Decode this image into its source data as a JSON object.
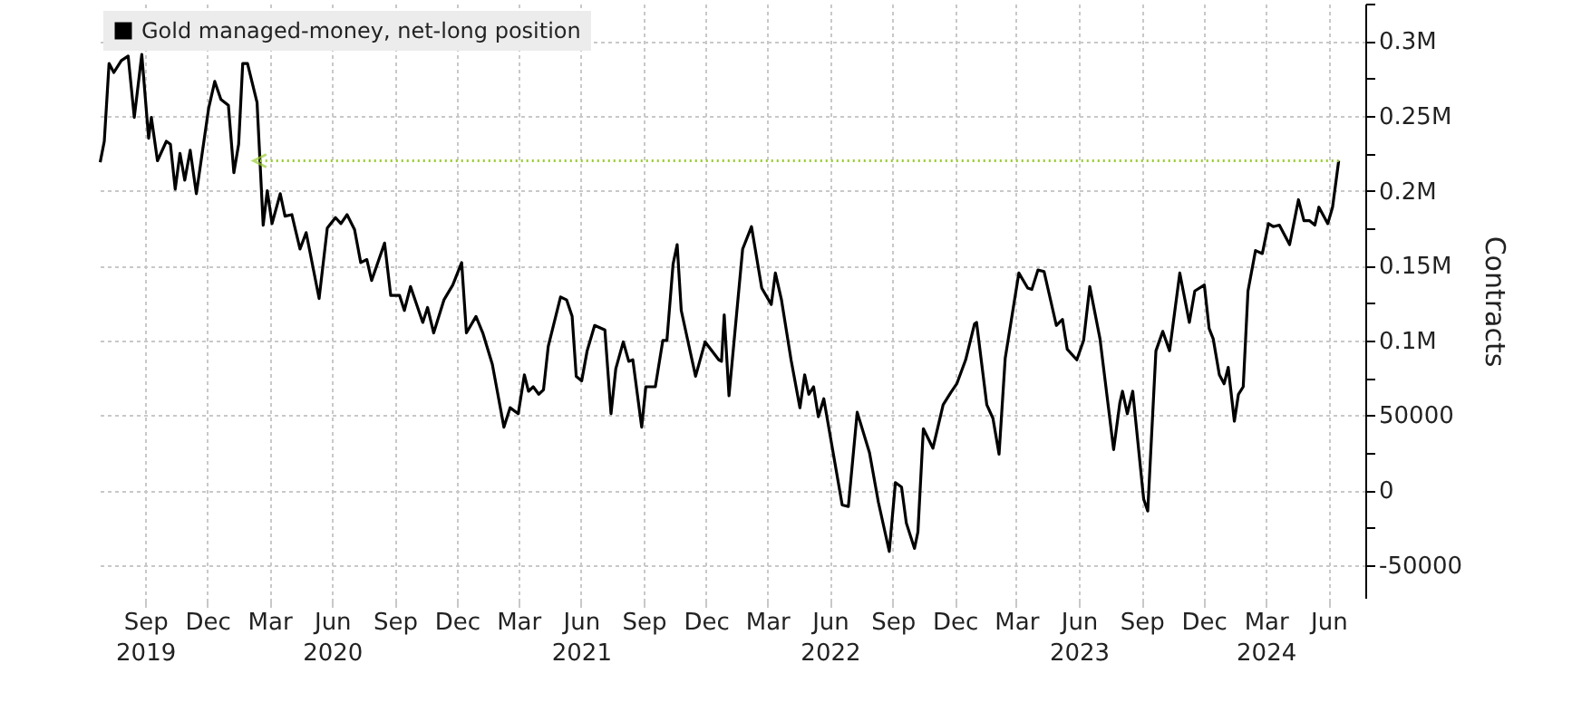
{
  "chart_data": {
    "type": "line",
    "x": [
      "2019-06-27",
      "2019-07-03",
      "2019-07-10",
      "2019-07-17",
      "2019-07-28",
      "2019-08-07",
      "2019-08-16",
      "2019-08-27",
      "2019-09-06",
      "2019-09-10",
      "2019-09-19",
      "2019-10-02",
      "2019-10-08",
      "2019-10-15",
      "2019-10-22",
      "2019-10-29",
      "2019-11-06",
      "2019-11-15",
      "2019-12-03",
      "2019-12-12",
      "2019-12-21",
      "2020-01-01",
      "2020-01-09",
      "2020-01-16",
      "2020-01-22",
      "2020-01-29",
      "2020-02-12",
      "2020-02-21",
      "2020-02-27",
      "2020-03-05",
      "2020-03-17",
      "2020-03-24",
      "2020-04-03",
      "2020-04-15",
      "2020-04-24",
      "2020-05-13",
      "2020-05-25",
      "2020-06-06",
      "2020-06-14",
      "2020-06-23",
      "2020-07-04",
      "2020-07-13",
      "2020-07-22",
      "2020-07-29",
      "2020-08-17",
      "2020-08-26",
      "2020-09-08",
      "2020-09-15",
      "2020-09-24",
      "2020-10-12",
      "2020-10-19",
      "2020-10-28",
      "2020-11-12",
      "2020-11-25",
      "2020-12-08",
      "2020-12-15",
      "2020-12-29",
      "2021-01-08",
      "2021-01-22",
      "2021-02-08",
      "2021-02-17",
      "2021-03-01",
      "2021-03-10",
      "2021-03-16",
      "2021-03-23",
      "2021-03-31",
      "2021-04-07",
      "2021-04-14",
      "2021-05-02",
      "2021-05-11",
      "2021-05-19",
      "2021-05-25",
      "2021-06-02",
      "2021-06-10",
      "2021-06-21",
      "2021-07-06",
      "2021-07-15",
      "2021-07-22",
      "2021-08-02",
      "2021-08-10",
      "2021-08-16",
      "2021-08-29",
      "2021-09-04",
      "2021-09-18",
      "2021-09-29",
      "2021-10-05",
      "2021-10-14",
      "2021-10-20",
      "2021-10-26",
      "2021-11-16",
      "2021-11-30",
      "2021-12-20",
      "2021-12-24",
      "2021-12-28",
      "2022-01-04",
      "2022-01-24",
      "2022-02-06",
      "2022-02-21",
      "2022-03-07",
      "2022-03-13",
      "2022-03-22",
      "2022-04-05",
      "2022-04-18",
      "2022-04-25",
      "2022-05-01",
      "2022-05-08",
      "2022-05-15",
      "2022-05-23",
      "2022-06-19",
      "2022-06-28",
      "2022-07-11",
      "2022-07-29",
      "2022-08-11",
      "2022-08-27",
      "2022-09-05",
      "2022-09-14",
      "2022-09-21",
      "2022-10-03",
      "2022-10-08",
      "2022-10-16",
      "2022-10-30",
      "2022-11-14",
      "2022-11-25",
      "2022-12-04",
      "2022-12-17",
      "2022-12-30",
      "2023-01-02",
      "2023-01-17",
      "2023-01-26",
      "2023-02-04",
      "2023-02-13",
      "2023-03-05",
      "2023-03-18",
      "2023-03-24",
      "2023-04-02",
      "2023-04-11",
      "2023-04-29",
      "2023-05-08",
      "2023-05-15",
      "2023-05-29",
      "2023-06-08",
      "2023-06-17",
      "2023-07-02",
      "2023-07-22",
      "2023-07-31",
      "2023-08-04",
      "2023-08-11",
      "2023-08-19",
      "2023-09-04",
      "2023-09-10",
      "2023-09-22",
      "2023-10-02",
      "2023-10-12",
      "2023-10-27",
      "2023-11-10",
      "2023-11-18",
      "2023-12-02",
      "2023-12-09",
      "2023-12-15",
      "2023-12-24",
      "2023-12-31",
      "2024-01-06",
      "2024-01-15",
      "2024-01-21",
      "2024-01-28",
      "2024-02-04",
      "2024-02-15",
      "2024-02-25",
      "2024-03-05",
      "2024-03-12",
      "2024-03-21",
      "2024-04-05",
      "2024-04-18",
      "2024-04-26",
      "2024-05-04",
      "2024-05-12",
      "2024-05-18",
      "2024-05-31",
      "2024-06-07",
      "2024-06-16"
    ],
    "series": [
      {
        "name": "Gold managed-money, net-long position",
        "color": "#000000",
        "values": [
          219000,
          233000,
          285000,
          279000,
          287000,
          290000,
          249000,
          291000,
          235000,
          249000,
          220000,
          233000,
          231000,
          201000,
          225000,
          207000,
          227000,
          198000,
          255000,
          273000,
          261000,
          257000,
          212000,
          231000,
          285000,
          285000,
          259000,
          177000,
          200000,
          178000,
          198000,
          183000,
          184000,
          161000,
          172000,
          128000,
          175000,
          182000,
          178000,
          184000,
          174000,
          152000,
          154000,
          140000,
          165000,
          130000,
          130000,
          120000,
          136000,
          112000,
          122000,
          105000,
          127000,
          137000,
          152000,
          105000,
          116000,
          105000,
          84000,
          42000,
          55000,
          51000,
          77000,
          66000,
          69000,
          64000,
          67000,
          96000,
          129000,
          127000,
          116000,
          76000,
          73000,
          93000,
          110000,
          107000,
          51000,
          81000,
          99000,
          86000,
          87000,
          42000,
          69000,
          69000,
          100000,
          100000,
          151000,
          164000,
          120000,
          76000,
          99000,
          87000,
          86000,
          117000,
          63000,
          161000,
          176000,
          135000,
          124000,
          145000,
          127000,
          87000,
          55000,
          77000,
          64000,
          69000,
          49000,
          61000,
          -10000,
          -11000,
          52000,
          25000,
          -8000,
          -41000,
          5000,
          2000,
          -22000,
          -39000,
          -28000,
          41000,
          28000,
          57000,
          65000,
          71000,
          87000,
          111000,
          112000,
          57000,
          48000,
          24000,
          88000,
          145000,
          135000,
          134000,
          147000,
          146000,
          110000,
          114000,
          94000,
          87000,
          100000,
          136000,
          101000,
          27000,
          58000,
          66000,
          51000,
          66000,
          -6000,
          -14000,
          93000,
          106000,
          93000,
          145000,
          112000,
          133000,
          137000,
          108000,
          101000,
          77000,
          71000,
          82000,
          46000,
          64000,
          69000,
          133000,
          160000,
          158000,
          178000,
          176000,
          177000,
          164000,
          194000,
          180000,
          180000,
          177000,
          189000,
          178000,
          189000,
          220000
        ]
      }
    ],
    "xlim": [
      "2019-06-21",
      "2024-07-25"
    ],
    "xticks": [
      {
        "value": "2019-09-01",
        "label": "Sep\n2019"
      },
      {
        "value": "2019-12-01",
        "label": "Dec"
      },
      {
        "value": "2020-03-01",
        "label": "Mar"
      },
      {
        "value": "2020-06-01",
        "label": "Jun\n2020"
      },
      {
        "value": "2020-09-01",
        "label": "Sep"
      },
      {
        "value": "2020-12-01",
        "label": "Dec"
      },
      {
        "value": "2021-03-01",
        "label": "Mar"
      },
      {
        "value": "2021-06-01",
        "label": "Jun\n2021"
      },
      {
        "value": "2021-09-01",
        "label": "Sep"
      },
      {
        "value": "2021-12-01",
        "label": "Dec"
      },
      {
        "value": "2022-03-01",
        "label": "Mar"
      },
      {
        "value": "2022-06-01",
        "label": "Jun\n2022"
      },
      {
        "value": "2022-09-01",
        "label": "Sep"
      },
      {
        "value": "2022-12-01",
        "label": "Dec"
      },
      {
        "value": "2023-03-01",
        "label": "Mar"
      },
      {
        "value": "2023-06-01",
        "label": "Jun\n2023"
      },
      {
        "value": "2023-09-01",
        "label": "Sep"
      },
      {
        "value": "2023-12-01",
        "label": "Dec"
      },
      {
        "value": "2024-03-01",
        "label": "Mar\n2024"
      },
      {
        "value": "2024-06-01",
        "label": "Jun"
      }
    ],
    "ylim": [
      -72000,
      325000
    ],
    "yticks": [
      -50000,
      {
        "value": -25000,
        "label": null
      },
      0,
      {
        "value": 25000,
        "label": null
      },
      50000,
      {
        "value": 75000,
        "label": null
      },
      {
        "value": 100000,
        "label": "0.1M"
      },
      {
        "value": 125000,
        "label": null
      },
      {
        "value": 150000,
        "label": "0.15M"
      },
      {
        "value": 175000,
        "label": null
      },
      {
        "value": 200000,
        "label": "0.2M"
      },
      {
        "value": 225000,
        "label": null
      },
      {
        "value": 250000,
        "label": "0.25M"
      },
      {
        "value": 275000,
        "label": null
      },
      {
        "value": 300000,
        "label": "0.3M"
      },
      {
        "value": 325000,
        "label": null
      }
    ],
    "ylabel": "Contracts",
    "grid": true,
    "legend": "top left",
    "ref_lines": [
      {
        "axis": "y",
        "value": 220000,
        "color": "#99cc33",
        "line_style": "dotted"
      }
    ]
  }
}
